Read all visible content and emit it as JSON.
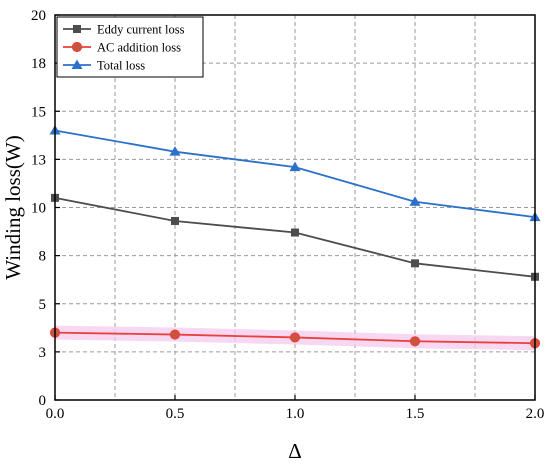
{
  "chart_data": {
    "type": "line",
    "xlabel": "Δ",
    "ylabel": "Winding loss(W)",
    "xlim": [
      0,
      2
    ],
    "ylim": [
      0,
      20
    ],
    "x_ticks": [
      "0.0",
      "0.5",
      "1.0",
      "1.5",
      "2.0"
    ],
    "x_tick_values": [
      0,
      0.5,
      1.0,
      1.5,
      2.0
    ],
    "y_ticks": [
      "0",
      "3",
      "5",
      "8",
      "10",
      "13",
      "15",
      "18",
      "20"
    ],
    "y_tick_values": [
      0,
      2.5,
      5,
      7.5,
      10,
      12.5,
      15,
      17.5,
      20
    ],
    "grid": true,
    "legend_position": "top-left",
    "x": [
      0,
      0.5,
      1.0,
      1.5,
      2.0
    ],
    "series": [
      {
        "name": "Eddy current loss",
        "values": [
          10.5,
          9.3,
          8.7,
          7.1,
          6.4
        ],
        "color": "#4d4d4d",
        "marker": "square"
      },
      {
        "name": "AC addition loss",
        "values": [
          3.5,
          3.4,
          3.25,
          3.05,
          2.95
        ],
        "color": "#e8413c",
        "marker": "circle"
      },
      {
        "name": "Total loss",
        "values": [
          14.0,
          12.9,
          12.1,
          10.3,
          9.5
        ],
        "color": "#2b70c9",
        "marker": "triangle"
      }
    ]
  }
}
